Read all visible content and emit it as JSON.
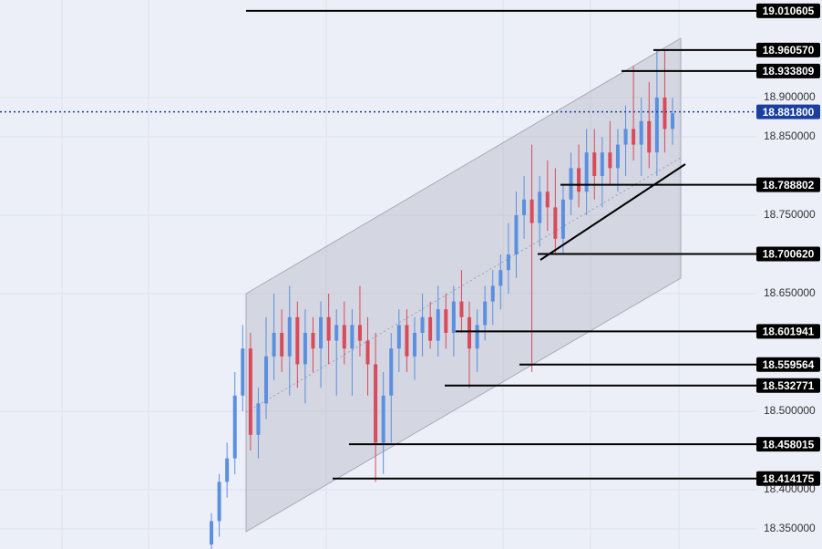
{
  "chart_data": {
    "type": "candlestick",
    "up_color": "#5b8fe0",
    "down_color": "#d94a5a",
    "ylim": [
      18.3244,
      19.0244
    ],
    "yticks": [
      {
        "value": 18.35,
        "label": "18.350000"
      },
      {
        "value": 18.4,
        "label": "18.400000"
      },
      {
        "value": 18.5,
        "label": "18.500000"
      },
      {
        "value": 18.65,
        "label": "18.650000"
      },
      {
        "value": 18.75,
        "label": "18.750000"
      },
      {
        "value": 18.85,
        "label": "18.850000"
      },
      {
        "value": 18.9,
        "label": "18.900000"
      }
    ],
    "grid": true,
    "open": [
      18.33,
      18.36,
      18.41,
      18.44,
      18.52,
      18.58,
      18.47,
      18.51,
      18.57,
      18.6,
      18.57,
      18.62,
      18.56,
      18.6,
      18.58,
      18.62,
      18.59,
      18.61,
      18.58,
      18.61,
      18.59,
      18.56,
      18.46,
      18.52,
      18.58,
      18.61,
      18.57,
      18.6,
      18.62,
      18.59,
      18.63,
      18.6,
      18.64,
      18.62,
      18.58,
      18.61,
      18.64,
      18.66,
      18.68,
      18.7,
      18.75,
      18.77,
      18.74,
      18.78,
      18.76,
      18.72,
      18.77,
      18.81,
      18.78,
      18.83,
      18.8,
      18.83,
      18.81,
      18.84,
      18.86,
      18.84,
      18.87,
      18.83,
      18.9,
      18.86
    ],
    "high": [
      18.37,
      18.42,
      18.46,
      18.55,
      18.61,
      18.6,
      18.53,
      18.62,
      18.65,
      18.63,
      18.66,
      18.64,
      18.63,
      18.62,
      18.64,
      18.65,
      18.63,
      18.64,
      18.63,
      18.66,
      18.62,
      18.6,
      18.55,
      18.6,
      18.63,
      18.63,
      18.62,
      18.65,
      18.64,
      18.66,
      18.65,
      18.66,
      18.68,
      18.64,
      18.63,
      18.66,
      18.68,
      18.7,
      18.74,
      18.78,
      18.8,
      18.84,
      18.8,
      18.82,
      18.81,
      18.79,
      18.83,
      18.84,
      18.86,
      18.86,
      18.85,
      18.87,
      18.86,
      18.89,
      18.94,
      18.9,
      18.92,
      18.96,
      18.96,
      18.9
    ],
    "low": [
      18.32,
      18.34,
      18.39,
      18.42,
      18.5,
      18.45,
      18.44,
      18.49,
      18.54,
      18.55,
      18.52,
      18.53,
      18.51,
      18.55,
      18.53,
      18.56,
      18.52,
      18.56,
      18.52,
      18.57,
      18.52,
      18.41,
      18.42,
      18.46,
      18.55,
      18.55,
      18.54,
      18.57,
      18.58,
      18.57,
      18.58,
      18.57,
      18.6,
      18.53,
      18.55,
      18.59,
      18.61,
      18.63,
      18.65,
      18.67,
      18.72,
      18.55,
      18.71,
      18.73,
      18.7,
      18.7,
      18.75,
      18.76,
      18.75,
      18.77,
      18.76,
      18.79,
      18.78,
      18.8,
      18.82,
      18.8,
      18.81,
      18.8,
      18.83,
      18.84
    ],
    "close": [
      18.36,
      18.41,
      18.44,
      18.52,
      18.58,
      18.47,
      18.51,
      18.57,
      18.6,
      18.57,
      18.62,
      18.56,
      18.6,
      18.58,
      18.62,
      18.59,
      18.61,
      18.58,
      18.61,
      18.59,
      18.56,
      18.46,
      18.52,
      18.58,
      18.61,
      18.57,
      18.6,
      18.62,
      18.59,
      18.63,
      18.6,
      18.64,
      18.62,
      18.58,
      18.61,
      18.64,
      18.66,
      18.68,
      18.7,
      18.75,
      18.77,
      18.74,
      18.78,
      18.76,
      18.72,
      18.77,
      18.81,
      18.78,
      18.83,
      18.8,
      18.83,
      18.81,
      18.84,
      18.86,
      18.84,
      18.87,
      18.83,
      18.9,
      18.86,
      18.88
    ],
    "levels": [
      {
        "value": 19.010605,
        "label": "19.010605",
        "color": "#000000"
      },
      {
        "value": 18.96057,
        "label": "18.960570",
        "color": "#000000"
      },
      {
        "value": 18.933809,
        "label": "18.933809",
        "color": "#000000"
      },
      {
        "value": 18.8818,
        "label": "18.881800",
        "color": "#1a3f9e",
        "dotted": true
      },
      {
        "value": 18.788802,
        "label": "18.788802",
        "color": "#000000"
      },
      {
        "value": 18.70062,
        "label": "18.700620",
        "color": "#000000"
      },
      {
        "value": 18.601941,
        "label": "18.601941",
        "color": "#000000"
      },
      {
        "value": 18.559564,
        "label": "18.559564",
        "color": "#000000"
      },
      {
        "value": 18.532771,
        "label": "18.532771",
        "color": "#000000"
      },
      {
        "value": 18.458015,
        "label": "18.458015",
        "color": "#000000"
      },
      {
        "value": 18.414175,
        "label": "18.414175",
        "color": "#000000"
      }
    ]
  }
}
